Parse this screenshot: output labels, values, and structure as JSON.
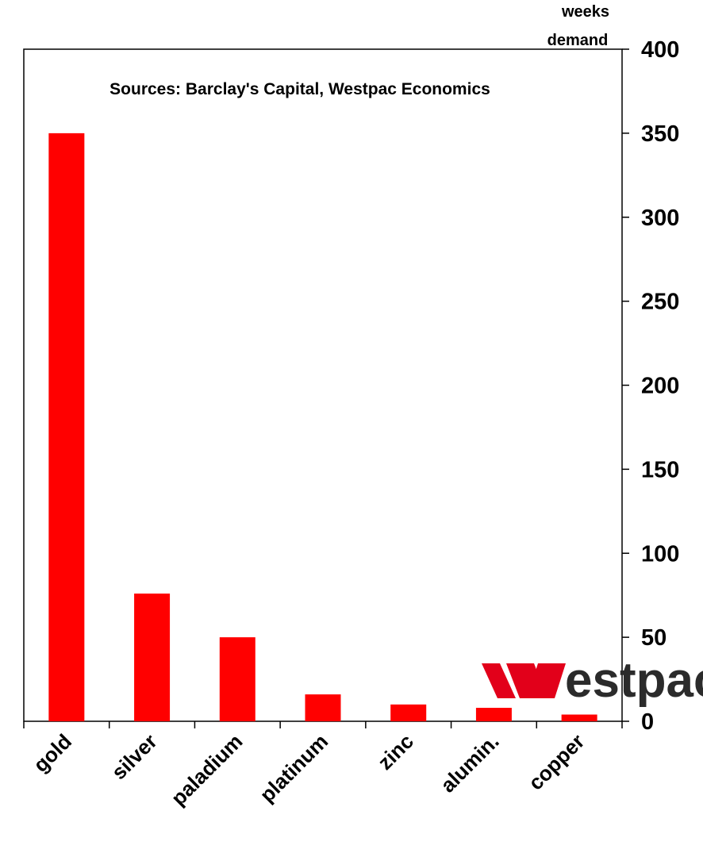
{
  "chart_data": {
    "type": "bar",
    "categories": [
      "gold",
      "silver",
      "paladium",
      "platinum",
      "zinc",
      "alumin.",
      "copper"
    ],
    "values": [
      350,
      76,
      50,
      16,
      10,
      8,
      4
    ],
    "ylabel_line1": "weeks",
    "ylabel_line2": "demand",
    "ylim": [
      0,
      400
    ],
    "yticks": [
      0,
      50,
      100,
      150,
      200,
      250,
      300,
      350,
      400
    ],
    "y_axis_side": "right",
    "annotation": "Sources: Barclay's Capital, Westpac Economics",
    "grid": false,
    "legend": "none",
    "colors": {
      "bar": "#ff0000",
      "axis": "#000000"
    }
  },
  "logo": {
    "text": "estpac",
    "mark": "W",
    "color": "#e2001a"
  }
}
